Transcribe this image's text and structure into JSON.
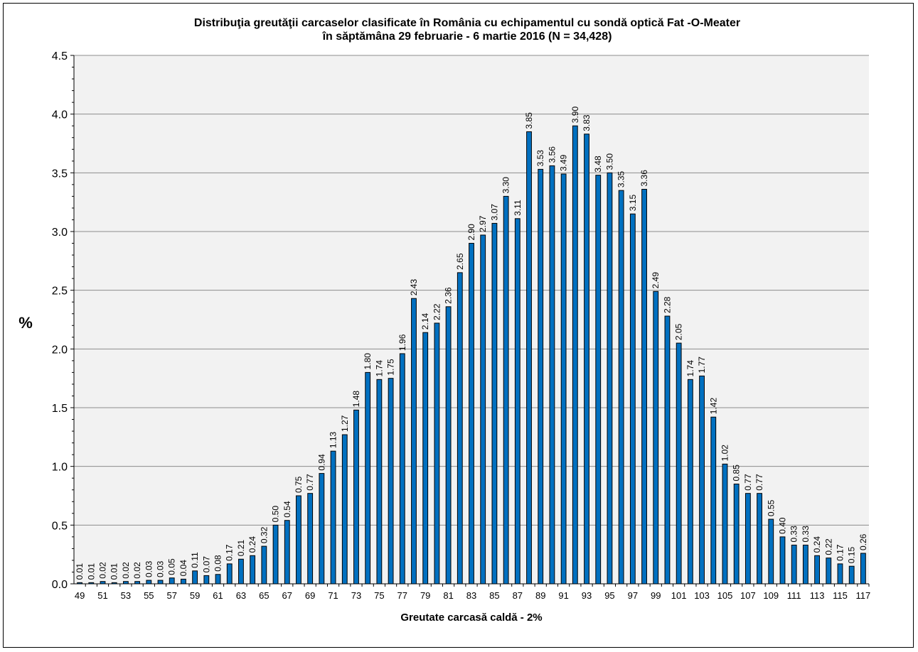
{
  "chart_data": {
    "type": "bar",
    "title_line1": "Distribuţia greutăţii carcaselor clasificate în România cu echipamentul cu sondă optică Fat -O-Meater",
    "title_line2": "în săptămâna 29 februarie - 6 martie 2016  (N = 34,428)",
    "xlabel": "Greutate carcasă caldă - 2%",
    "ylabel": "%",
    "ylim": [
      0,
      4.5
    ],
    "yticks": [
      "0.0",
      "0.5",
      "1.0",
      "1.5",
      "2.0",
      "2.5",
      "3.0",
      "3.5",
      "4.0",
      "4.5"
    ],
    "grid": true,
    "bar_color": "#0070c0",
    "plot_background": "#f2f2f2",
    "categories": [
      49,
      50,
      51,
      52,
      53,
      54,
      55,
      56,
      57,
      58,
      59,
      60,
      61,
      62,
      63,
      64,
      65,
      66,
      67,
      68,
      69,
      70,
      71,
      72,
      73,
      74,
      75,
      76,
      77,
      78,
      79,
      80,
      81,
      82,
      83,
      84,
      85,
      86,
      87,
      88,
      89,
      90,
      91,
      92,
      93,
      94,
      95,
      96,
      97,
      98,
      99,
      100,
      101,
      102,
      103,
      104,
      105,
      106,
      107,
      108,
      109,
      110,
      111,
      112,
      113,
      114,
      115,
      116,
      117
    ],
    "tick_labels": [
      "49",
      "51",
      "53",
      "55",
      "57",
      "59",
      "61",
      "63",
      "65",
      "67",
      "69",
      "71",
      "73",
      "75",
      "77",
      "79",
      "81",
      "83",
      "85",
      "87",
      "89",
      "91",
      "93",
      "95",
      "97",
      "99",
      "101",
      "103",
      "105",
      "107",
      "109",
      "111",
      "113",
      "115",
      "117"
    ],
    "values": [
      0.01,
      0.01,
      0.02,
      0.01,
      0.02,
      0.02,
      0.03,
      0.03,
      0.05,
      0.04,
      0.11,
      0.07,
      0.08,
      0.17,
      0.21,
      0.24,
      0.32,
      0.5,
      0.54,
      0.75,
      0.77,
      0.94,
      1.13,
      1.27,
      1.48,
      1.8,
      1.74,
      1.75,
      1.96,
      2.43,
      2.14,
      2.22,
      2.36,
      2.65,
      2.9,
      2.97,
      3.07,
      3.3,
      3.11,
      3.85,
      3.53,
      3.56,
      3.49,
      3.9,
      3.83,
      3.48,
      3.5,
      3.35,
      3.15,
      3.36,
      2.49,
      2.28,
      2.05,
      1.74,
      1.77,
      1.42,
      1.02,
      0.85,
      0.77,
      0.77,
      0.55,
      0.4,
      0.33,
      0.33,
      0.24,
      0.22,
      0.17,
      0.15,
      0.26
    ],
    "value_labels": [
      "0.01",
      "0.01",
      "0.02",
      "0.01",
      "0.02",
      "0.02",
      "0.03",
      "0.03",
      "0.05",
      "0.04",
      "0.11",
      "0.07",
      "0.08",
      "0.17",
      "0.21",
      "0.24",
      "0.32",
      "0.50",
      "0.54",
      "0.75",
      "0.77",
      "0.94",
      "1.13",
      "1.27",
      "1.48",
      "1.80",
      "1.74",
      "1.75",
      "1.96",
      "2.43",
      "2.14",
      "2.22",
      "2.36",
      "2.65",
      "2.90",
      "2.97",
      "3.07",
      "3.30",
      "3.11",
      "3.85",
      "3.53",
      "3.56",
      "3.49",
      "3.90",
      "3.83",
      "3.48",
      "3.50",
      "3.35",
      "3.15",
      "3.36",
      "2.49",
      "2.28",
      "2.05",
      "1.74",
      "1.77",
      "1.42",
      "1.02",
      "0.85",
      "0.77",
      "0.77",
      "0.55",
      "0.40",
      "0.33",
      "0.33",
      "0.24",
      "0.22",
      "0.17",
      "0.15",
      "0.26"
    ]
  }
}
